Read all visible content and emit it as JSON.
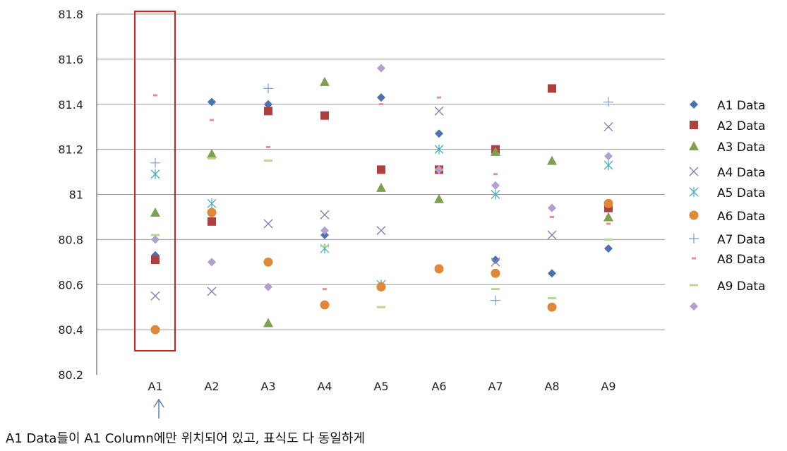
{
  "chart_data": {
    "type": "scatter",
    "categories": [
      "A1",
      "A2",
      "A3",
      "A4",
      "A5",
      "A6",
      "A7",
      "A8",
      "A9"
    ],
    "ylim": [
      80.2,
      81.8
    ],
    "yticks": [
      "80.2",
      "80.4",
      "80.6",
      "80.8",
      "81",
      "81.2",
      "81.4",
      "81.6",
      "81.8"
    ],
    "grid": true,
    "legend_position": "right",
    "series": [
      {
        "name": "A1 Data",
        "marker": "diamond",
        "color": "#4a72b0",
        "values": [
          80.73,
          81.41,
          81.4,
          80.82,
          81.43,
          81.27,
          80.71,
          80.65,
          80.76
        ]
      },
      {
        "name": "A2 Data",
        "marker": "square",
        "color": "#b04040",
        "values": [
          80.71,
          80.88,
          81.37,
          81.35,
          81.11,
          81.11,
          81.2,
          81.47,
          80.94
        ]
      },
      {
        "name": "A3 Data",
        "marker": "triangle",
        "color": "#80a050",
        "values": [
          80.92,
          81.18,
          80.43,
          81.5,
          81.03,
          80.98,
          81.19,
          81.15,
          80.9
        ]
      },
      {
        "name": "A4 Data",
        "marker": "x",
        "color": "#8a7bb0",
        "values": [
          80.55,
          80.57,
          80.87,
          80.91,
          80.84,
          81.37,
          80.7,
          80.82,
          81.3
        ]
      },
      {
        "name": "A5 Data",
        "marker": "asterisk",
        "color": "#4aaec0",
        "values": [
          81.09,
          80.96,
          null,
          80.76,
          80.6,
          81.2,
          81.0,
          null,
          81.13
        ]
      },
      {
        "name": "A6 Data",
        "marker": "circle",
        "color": "#e08838",
        "values": [
          80.4,
          80.92,
          80.7,
          80.51,
          80.59,
          80.67,
          80.65,
          80.5,
          80.96
        ]
      },
      {
        "name": "A7 Data",
        "marker": "plus",
        "color": "#7a9fd8",
        "values": [
          81.14,
          null,
          81.47,
          null,
          null,
          null,
          80.53,
          null,
          81.41
        ]
      },
      {
        "name": "A8 Data",
        "marker": "dash",
        "color": "#e89090",
        "values": [
          81.44,
          81.33,
          81.21,
          80.58,
          81.4,
          81.43,
          81.09,
          80.9,
          80.87
        ]
      },
      {
        "name": "A9 Data",
        "marker": "bar",
        "color": "#b8d890",
        "values": [
          80.82,
          81.16,
          81.15,
          80.77,
          80.5,
          81.11,
          80.58,
          80.54,
          80.8
        ]
      },
      {
        "name": "",
        "marker": "diamond",
        "color": "#b4a0cc",
        "values": [
          80.8,
          80.7,
          80.59,
          80.84,
          81.56,
          81.11,
          81.04,
          80.94,
          81.17
        ]
      }
    ]
  },
  "note": "A1 Data들이 A1 Column에만 위치되어 있고, 표식도 다 동일하게",
  "colors": {
    "highlight_box": "#d02020",
    "grid": "#999999",
    "axis": "#444444",
    "arrow": "#5a7fb8"
  }
}
